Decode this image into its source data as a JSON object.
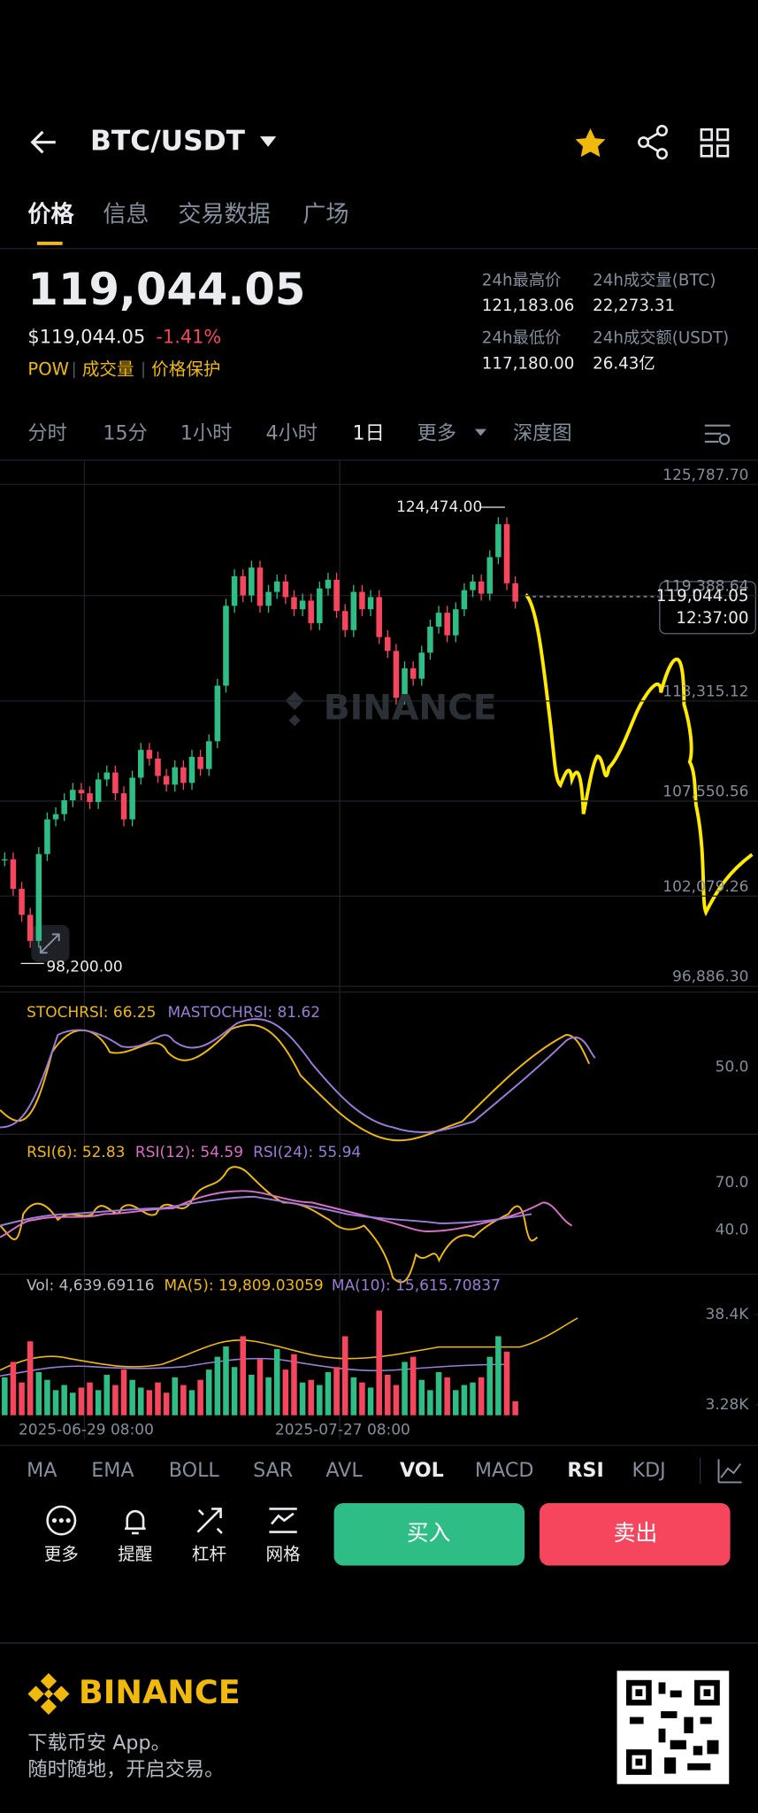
{
  "header": {
    "pair": "BTC/USDT"
  },
  "tabs": [
    "价格",
    "信息",
    "交易数据",
    "广场"
  ],
  "ticker": {
    "price": "119,044.05",
    "usd": "$119,044.05",
    "change": "-1.41%",
    "tags": [
      "POW",
      "成交量",
      "价格保护"
    ]
  },
  "stats": [
    {
      "label": "24h最高价",
      "value": "121,183.06"
    },
    {
      "label": "24h成交量(BTC)",
      "value": "22,273.31"
    },
    {
      "label": "24h最低价",
      "value": "117,180.00"
    },
    {
      "label": "24h成交额(USDT)",
      "value": "26.43亿"
    }
  ],
  "intervals": [
    "分时",
    "15分",
    "1小时",
    "4小时",
    "1日",
    "更多",
    "深度图"
  ],
  "chart_data": [
    {
      "type": "candlestick",
      "values": [
        104200,
        102500,
        101000,
        99500,
        104500,
        106500,
        106800,
        107600,
        108200,
        108000,
        107500,
        108800,
        109200,
        108000,
        106500,
        108900,
        110500,
        110000,
        109000,
        108500,
        109500,
        108600,
        110100,
        109400,
        111000,
        114200,
        118800,
        120500,
        119400,
        121000,
        118800,
        119600,
        120200,
        119300,
        118600,
        119100,
        117800,
        119800,
        120300,
        118500,
        117400,
        119600,
        118600,
        119300,
        117000,
        116200,
        113500,
        115200,
        114600,
        116100,
        117600,
        118400,
        117100,
        118600,
        119700,
        120200,
        119500,
        121600,
        123500,
        120100,
        119044.05
      ],
      "colors": [
        "#2ebd85",
        "#f6465d"
      ],
      "ylim": [
        96886.3,
        125787.7
      ],
      "yticks": [
        {
          "value": 125787.7,
          "label": "125,787.70"
        },
        {
          "value": 119388.64,
          "label": "119,388.64"
        },
        {
          "value": 113315.12,
          "label": "113,315.12"
        },
        {
          "value": 107550.56,
          "label": "107,550.56"
        },
        {
          "value": 102079.26,
          "label": "102,079.26"
        },
        {
          "value": 96886.3,
          "label": "96,886.30"
        }
      ],
      "high": {
        "value": 124474,
        "label": "124,474.00"
      },
      "low": {
        "value": 98200,
        "label": "98,200.00"
      },
      "last_price": {
        "value": 119044.05,
        "label": "119,044.05"
      },
      "last_time": "12:37:00",
      "watermark": "BINANCE",
      "x_labels": [
        "2025-06-29 08:00",
        "2025-07-27 08:00"
      ]
    },
    {
      "type": "bar",
      "values": [
        14000,
        20000,
        12000,
        28000,
        16000,
        13000,
        9000,
        11000,
        8000,
        10000,
        12000,
        9000,
        15000,
        11000,
        17000,
        13000,
        10000,
        9000,
        12000,
        8000,
        14000,
        11000,
        9000,
        13000,
        17000,
        22000,
        26000,
        18000,
        30000,
        15000,
        21000,
        14000,
        25000,
        17000,
        23000,
        12000,
        13000,
        11000,
        16000,
        18000,
        30000,
        14000,
        12000,
        10000,
        40000,
        15000,
        11000,
        20000,
        22000,
        13000,
        9000,
        16000,
        14000,
        9000,
        11000,
        12000,
        14000,
        22000,
        30000,
        24000,
        4639.69116
      ],
      "ylim": [
        3280,
        38400
      ],
      "yticks": [
        {
          "value": 38400,
          "label": "38.4K"
        },
        {
          "value": 3280,
          "label": "3.28K"
        }
      ]
    }
  ],
  "indicators": {
    "stoch": [
      "STOCHRSI: 66.25",
      "MASTOCHRSI: 81.62"
    ],
    "stoch_tick": "50.0",
    "rsi": [
      "RSI(6): 52.83",
      "RSI(12): 54.59",
      "RSI(24): 55.94"
    ],
    "rsi_ticks": [
      "70.0",
      "40.0"
    ],
    "vol": [
      "Vol: 4,639.69116",
      "MA(5): 19,809.03059",
      "MA(10): 15,615.70837"
    ]
  },
  "indicator_tabs": [
    "MA",
    "EMA",
    "BOLL",
    "SAR",
    "AVL",
    "VOL",
    "MACD",
    "RSI",
    "KDJ"
  ],
  "actions": [
    "更多",
    "提醒",
    "杠杆",
    "网格"
  ],
  "buy": "买入",
  "sell": "卖出",
  "footer": {
    "brand": "BINANCE",
    "lines": [
      "下载币安 App。",
      "随时随地，开启交易。"
    ]
  }
}
